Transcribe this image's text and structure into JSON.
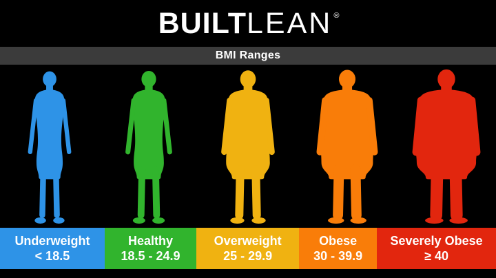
{
  "brand": {
    "name_bold": "BUILT",
    "name_light": "LEAN",
    "registered_mark": "®"
  },
  "title_bar": {
    "title": "BMI Ranges",
    "bg_color": "#3b3b3b"
  },
  "background_color": "#000000",
  "text_color": "#ffffff",
  "categories": [
    {
      "label": "Underweight",
      "range": "< 18.5",
      "color": "#2E93E7",
      "width_pct": 21.1
    },
    {
      "label": "Healthy",
      "range": "18.5 - 24.9",
      "color": "#31B42D",
      "width_pct": 18.5
    },
    {
      "label": "Overweight",
      "range": "25 - 29.9",
      "color": "#F0B211",
      "width_pct": 20.7
    },
    {
      "label": "Obese",
      "range": "30 - 39.9",
      "color": "#F97D09",
      "width_pct": 15.7
    },
    {
      "label": "Severely Obese",
      "range": "≥ 40",
      "color": "#E2260E",
      "width_pct": 24.0
    }
  ]
}
